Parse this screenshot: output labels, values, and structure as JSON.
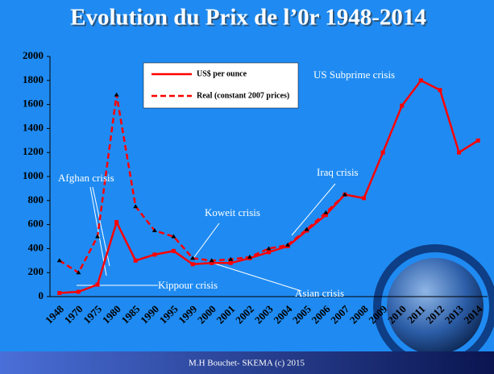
{
  "chart_data": {
    "type": "line",
    "title": "Evolution du Prix de l’0r 1948-2014",
    "categories": [
      "1948",
      "1970",
      "1975",
      "1980",
      "1985",
      "1990",
      "1995",
      "1999",
      "2000",
      "2001",
      "2002",
      "2003",
      "2004",
      "2005",
      "2006",
      "2007",
      "2008",
      "2009",
      "2010",
      "2011",
      "2012",
      "2013",
      "2014"
    ],
    "series": [
      {
        "name": "US$ per ounce",
        "color": "#ff0000",
        "dashed": false,
        "values": [
          30,
          40,
          100,
          620,
          300,
          350,
          380,
          270,
          280,
          280,
          320,
          370,
          420,
          550,
          680,
          850,
          820,
          1200,
          1590,
          1800,
          1720,
          1200,
          1300
        ]
      },
      {
        "name": "Real (constant 2007 prices)",
        "color": "#ff0000",
        "dashed": true,
        "values": [
          300,
          200,
          500,
          1680,
          750,
          550,
          500,
          320,
          300,
          310,
          330,
          400,
          430,
          560,
          700,
          850,
          null,
          null,
          null,
          null,
          null,
          null,
          null
        ]
      }
    ],
    "ylim": [
      0,
      2000
    ],
    "yticks": [
      0,
      200,
      400,
      600,
      800,
      1000,
      1200,
      1400,
      1600,
      1800,
      2000
    ],
    "annotations": [
      "Afghan crisis",
      "Kippour crisis",
      "Koweit crisis",
      "Asian crisis",
      "Iraq crisis",
      "US Subprime crisis"
    ],
    "footer": "M.H Bouchet- SKEMA (c) 2015"
  }
}
